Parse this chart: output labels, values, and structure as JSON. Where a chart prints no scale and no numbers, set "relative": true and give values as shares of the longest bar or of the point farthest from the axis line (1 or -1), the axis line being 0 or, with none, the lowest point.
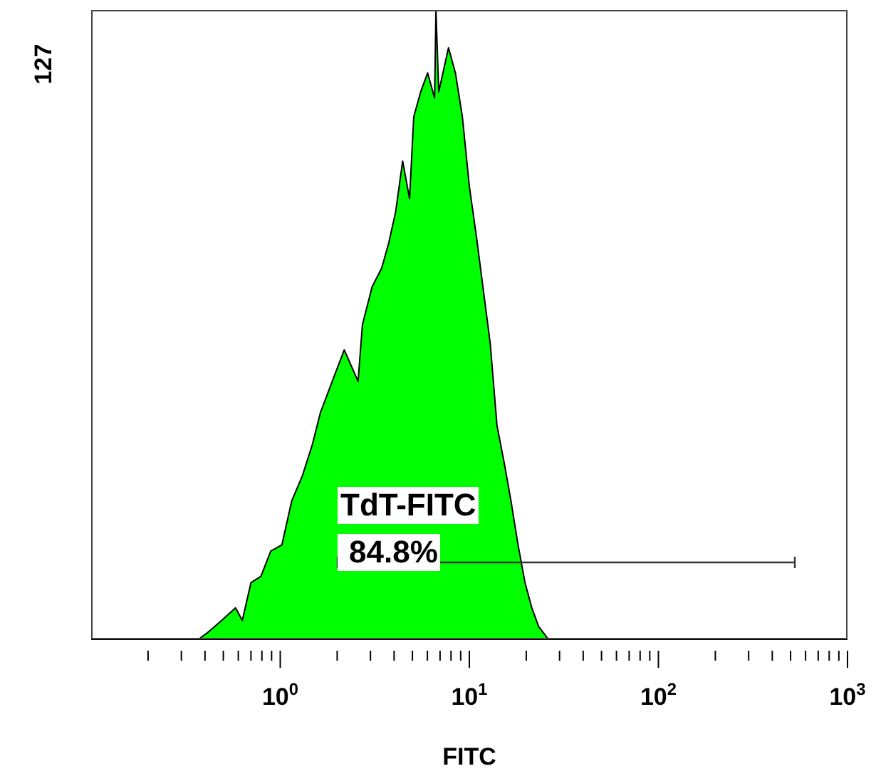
{
  "chart_data": {
    "type": "area",
    "relative": true,
    "xlabel": "FITC",
    "ylabel": "127",
    "log": "x",
    "xlim": [
      0.1,
      1000
    ],
    "xticks": [
      {
        "value": 0.2,
        "label": null
      },
      {
        "value": 0.3,
        "label": null
      },
      {
        "value": 0.4,
        "label": null
      },
      {
        "value": 0.5,
        "label": null
      },
      {
        "value": 0.6,
        "label": null
      },
      {
        "value": 0.7,
        "label": null
      },
      {
        "value": 0.8,
        "label": null
      },
      {
        "value": 0.9,
        "label": null
      },
      {
        "value": 1,
        "label": "10$^{0}$"
      },
      {
        "value": 2,
        "label": null
      },
      {
        "value": 3,
        "label": null
      },
      {
        "value": 4,
        "label": null
      },
      {
        "value": 5,
        "label": null
      },
      {
        "value": 6,
        "label": null
      },
      {
        "value": 7,
        "label": null
      },
      {
        "value": 8,
        "label": null
      },
      {
        "value": 9,
        "label": null
      },
      {
        "value": 10,
        "label": "10$^{1}$"
      },
      {
        "value": 20,
        "label": null
      },
      {
        "value": 30,
        "label": null
      },
      {
        "value": 40,
        "label": null
      },
      {
        "value": 50,
        "label": null
      },
      {
        "value": 60,
        "label": null
      },
      {
        "value": 70,
        "label": null
      },
      {
        "value": 80,
        "label": null
      },
      {
        "value": 90,
        "label": null
      },
      {
        "value": 100,
        "label": "10$^{2}$"
      },
      {
        "value": 200,
        "label": null
      },
      {
        "value": 300,
        "label": null
      },
      {
        "value": 400,
        "label": null
      },
      {
        "value": 500,
        "label": null
      },
      {
        "value": 600,
        "label": null
      },
      {
        "value": 700,
        "label": null
      },
      {
        "value": 800,
        "label": null
      },
      {
        "value": 900,
        "label": null
      },
      {
        "value": 1000,
        "label": "10$^{3}$"
      }
    ],
    "x": [
      0.37,
      0.41,
      0.49,
      0.58,
      0.63,
      0.7,
      0.79,
      0.89,
      1.02,
      1.15,
      1.31,
      1.48,
      1.63,
      1.94,
      2.18,
      2.58,
      2.72,
      3.06,
      3.44,
      3.75,
      4.08,
      4.44,
      4.83,
      5.08,
      5.53,
      6.02,
      6.55,
      6.66,
      6.89,
      7.76,
      8.44,
      9.19,
      10.0,
      10.9,
      11.8,
      12.9,
      14.0,
      15.3,
      16.6,
      18.1,
      19.7,
      21.4,
      23.3,
      26.2,
      28.6
    ],
    "series": [
      {
        "color": "#00ff00",
        "values": [
          0,
          0.01,
          0.03,
          0.05,
          0.03,
          0.09,
          0.1,
          0.14,
          0.15,
          0.22,
          0.26,
          0.31,
          0.36,
          0.42,
          0.46,
          0.41,
          0.5,
          0.56,
          0.59,
          0.63,
          0.68,
          0.76,
          0.7,
          0.83,
          0.87,
          0.9,
          0.86,
          1,
          0.87,
          0.94,
          0.9,
          0.83,
          0.72,
          0.64,
          0.56,
          0.47,
          0.34,
          0.28,
          0.22,
          0.15,
          0.09,
          0.05,
          0.02,
          0,
          0
        ]
      }
    ],
    "annotations": [
      "TdT-FITC",
      "84.8%"
    ]
  }
}
